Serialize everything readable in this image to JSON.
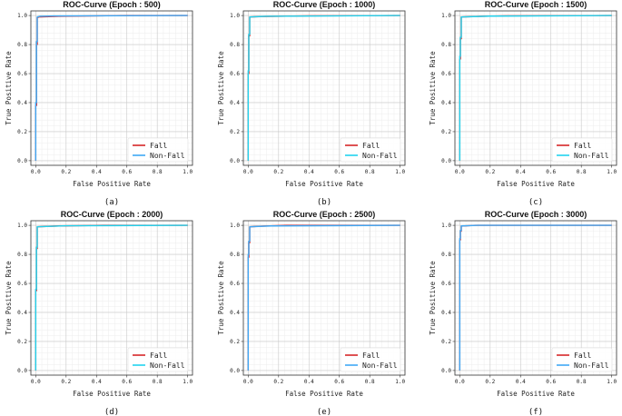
{
  "chart_data": [
    {
      "type": "line",
      "panel_label": "(a)",
      "title": "ROC-Curve (Epoch : 500)",
      "xlabel": "False Positive Rate",
      "ylabel": "True Positive Rate",
      "xlim": [
        0,
        1
      ],
      "ylim": [
        0,
        1
      ],
      "xticks": [
        "0.0",
        "0.2",
        "0.4",
        "0.6",
        "0.8",
        "1.0"
      ],
      "yticks": [
        "0.0",
        "0.2",
        "0.4",
        "0.6",
        "0.8",
        "1.0"
      ],
      "grid": true,
      "legend_position": "bottom-right",
      "series": [
        {
          "name": "Fall",
          "color": "#d62728",
          "points": [
            [
              0,
              0
            ],
            [
              0,
              0.38
            ],
            [
              0.005,
              0.38
            ],
            [
              0.005,
              0.8
            ],
            [
              0.01,
              0.8
            ],
            [
              0.01,
              0.985
            ],
            [
              0.02,
              0.99
            ],
            [
              0.15,
              0.995
            ],
            [
              0.6,
              1.0
            ],
            [
              1.0,
              1.0
            ]
          ]
        },
        {
          "name": "Non-Fall",
          "color": "#3fa9f5",
          "points": [
            [
              0,
              0
            ],
            [
              0,
              0.4
            ],
            [
              0.005,
              0.4
            ],
            [
              0.005,
              0.82
            ],
            [
              0.01,
              0.82
            ],
            [
              0.01,
              0.99
            ],
            [
              0.03,
              0.995
            ],
            [
              0.12,
              0.997
            ],
            [
              1.0,
              1.0
            ]
          ]
        }
      ]
    },
    {
      "type": "line",
      "panel_label": "(b)",
      "title": "ROC-Curve (Epoch : 1000)",
      "xlabel": "False Positive Rate",
      "ylabel": "True Positive Rate",
      "xlim": [
        0,
        1
      ],
      "ylim": [
        0,
        1
      ],
      "xticks": [
        "0.0",
        "0.2",
        "0.4",
        "0.6",
        "0.8",
        "1.0"
      ],
      "yticks": [
        "0.0",
        "0.2",
        "0.4",
        "0.6",
        "0.8",
        "1.0"
      ],
      "grid": true,
      "legend_position": "bottom-right",
      "series": [
        {
          "name": "Fall",
          "color": "#d62728",
          "points": [
            [
              0,
              0
            ],
            [
              0,
              0.6
            ],
            [
              0.004,
              0.6
            ],
            [
              0.004,
              0.86
            ],
            [
              0.01,
              0.86
            ],
            [
              0.01,
              0.99
            ],
            [
              0.1,
              0.993
            ],
            [
              0.4,
              0.998
            ],
            [
              1.0,
              1.0
            ]
          ]
        },
        {
          "name": "Non-Fall",
          "color": "#22d3ee",
          "points": [
            [
              0,
              0
            ],
            [
              0,
              0.62
            ],
            [
              0.004,
              0.62
            ],
            [
              0.004,
              0.87
            ],
            [
              0.01,
              0.87
            ],
            [
              0.01,
              0.99
            ],
            [
              0.12,
              0.995
            ],
            [
              1.0,
              1.0
            ]
          ]
        }
      ]
    },
    {
      "type": "line",
      "panel_label": "(c)",
      "title": "ROC-Curve (Epoch : 1500)",
      "xlabel": "False Positive Rate",
      "ylabel": "True Positive Rate",
      "xlim": [
        0,
        1
      ],
      "ylim": [
        0,
        1
      ],
      "xticks": [
        "0.0",
        "0.2",
        "0.4",
        "0.6",
        "0.8",
        "1.0"
      ],
      "yticks": [
        "0.0",
        "0.2",
        "0.4",
        "0.6",
        "0.8",
        "1.0"
      ],
      "grid": true,
      "legend_position": "bottom-right",
      "series": [
        {
          "name": "Fall",
          "color": "#d62728",
          "points": [
            [
              0,
              0
            ],
            [
              0,
              0.7
            ],
            [
              0.004,
              0.7
            ],
            [
              0.004,
              0.84
            ],
            [
              0.01,
              0.84
            ],
            [
              0.01,
              0.99
            ],
            [
              0.15,
              0.995
            ],
            [
              0.3,
              0.998
            ],
            [
              1.0,
              1.0
            ]
          ]
        },
        {
          "name": "Non-Fall",
          "color": "#22d3ee",
          "points": [
            [
              0,
              0
            ],
            [
              0,
              0.72
            ],
            [
              0.004,
              0.72
            ],
            [
              0.004,
              0.85
            ],
            [
              0.01,
              0.85
            ],
            [
              0.01,
              0.99
            ],
            [
              0.2,
              0.996
            ],
            [
              1.0,
              1.0
            ]
          ]
        }
      ]
    },
    {
      "type": "line",
      "panel_label": "(d)",
      "title": "ROC-Curve (Epoch : 2000)",
      "xlabel": "False Positive Rate",
      "ylabel": "True Positive Rate",
      "xlim": [
        0,
        1
      ],
      "ylim": [
        0,
        1
      ],
      "xticks": [
        "0.0",
        "0.2",
        "0.4",
        "0.6",
        "0.8",
        "1.0"
      ],
      "yticks": [
        "0.0",
        "0.2",
        "0.4",
        "0.6",
        "0.8",
        "1.0"
      ],
      "grid": true,
      "legend_position": "bottom-right",
      "series": [
        {
          "name": "Fall",
          "color": "#d62728",
          "points": [
            [
              0,
              0
            ],
            [
              0,
              0.55
            ],
            [
              0.005,
              0.55
            ],
            [
              0.005,
              0.84
            ],
            [
              0.01,
              0.84
            ],
            [
              0.01,
              0.99
            ],
            [
              0.15,
              0.996
            ],
            [
              0.45,
              1.0
            ],
            [
              1.0,
              1.0
            ]
          ]
        },
        {
          "name": "Non-Fall",
          "color": "#22d3ee",
          "points": [
            [
              0,
              0
            ],
            [
              0,
              0.56
            ],
            [
              0.005,
              0.56
            ],
            [
              0.005,
              0.85
            ],
            [
              0.01,
              0.85
            ],
            [
              0.01,
              0.99
            ],
            [
              0.2,
              0.997
            ],
            [
              1.0,
              1.0
            ]
          ]
        }
      ]
    },
    {
      "type": "line",
      "panel_label": "(e)",
      "title": "ROC-Curve (Epoch : 2500)",
      "xlabel": "False Positive Rate",
      "ylabel": "True Positive Rate",
      "xlim": [
        0,
        1
      ],
      "ylim": [
        0,
        1
      ],
      "xticks": [
        "0.0",
        "0.2",
        "0.4",
        "0.6",
        "0.8",
        "1.0"
      ],
      "yticks": [
        "0.0",
        "0.2",
        "0.4",
        "0.6",
        "0.8",
        "1.0"
      ],
      "grid": true,
      "legend_position": "bottom-right",
      "series": [
        {
          "name": "Fall",
          "color": "#d62728",
          "points": [
            [
              0,
              0
            ],
            [
              0,
              0.78
            ],
            [
              0.004,
              0.78
            ],
            [
              0.004,
              0.88
            ],
            [
              0.01,
              0.88
            ],
            [
              0.01,
              0.99
            ],
            [
              0.1,
              0.995
            ],
            [
              0.25,
              1.0
            ],
            [
              1.0,
              1.0
            ]
          ]
        },
        {
          "name": "Non-Fall",
          "color": "#3fa9f5",
          "points": [
            [
              0,
              0
            ],
            [
              0,
              0.8
            ],
            [
              0.004,
              0.8
            ],
            [
              0.004,
              0.89
            ],
            [
              0.01,
              0.89
            ],
            [
              0.01,
              0.99
            ],
            [
              0.15,
              0.996
            ],
            [
              1.0,
              1.0
            ]
          ]
        }
      ]
    },
    {
      "type": "line",
      "panel_label": "(f)",
      "title": "ROC-Curve (Epoch : 3000)",
      "xlabel": "False Positive Rate",
      "ylabel": "True Positive Rate",
      "xlim": [
        0,
        1
      ],
      "ylim": [
        0,
        1
      ],
      "xticks": [
        "0.0",
        "0.2",
        "0.4",
        "0.6",
        "0.8",
        "1.0"
      ],
      "yticks": [
        "0.0",
        "0.2",
        "0.4",
        "0.6",
        "0.8",
        "1.0"
      ],
      "grid": true,
      "legend_position": "bottom-right",
      "series": [
        {
          "name": "Fall",
          "color": "#d62728",
          "points": [
            [
              0,
              0
            ],
            [
              0,
              0.9
            ],
            [
              0.004,
              0.9
            ],
            [
              0.004,
              0.96
            ],
            [
              0.01,
              0.96
            ],
            [
              0.01,
              0.995
            ],
            [
              0.1,
              1.0
            ],
            [
              1.0,
              1.0
            ]
          ]
        },
        {
          "name": "Non-Fall",
          "color": "#3fa9f5",
          "points": [
            [
              0,
              0
            ],
            [
              0,
              0.91
            ],
            [
              0.004,
              0.91
            ],
            [
              0.004,
              0.965
            ],
            [
              0.01,
              0.965
            ],
            [
              0.01,
              0.996
            ],
            [
              0.12,
              1.0
            ],
            [
              1.0,
              1.0
            ]
          ]
        }
      ]
    }
  ]
}
